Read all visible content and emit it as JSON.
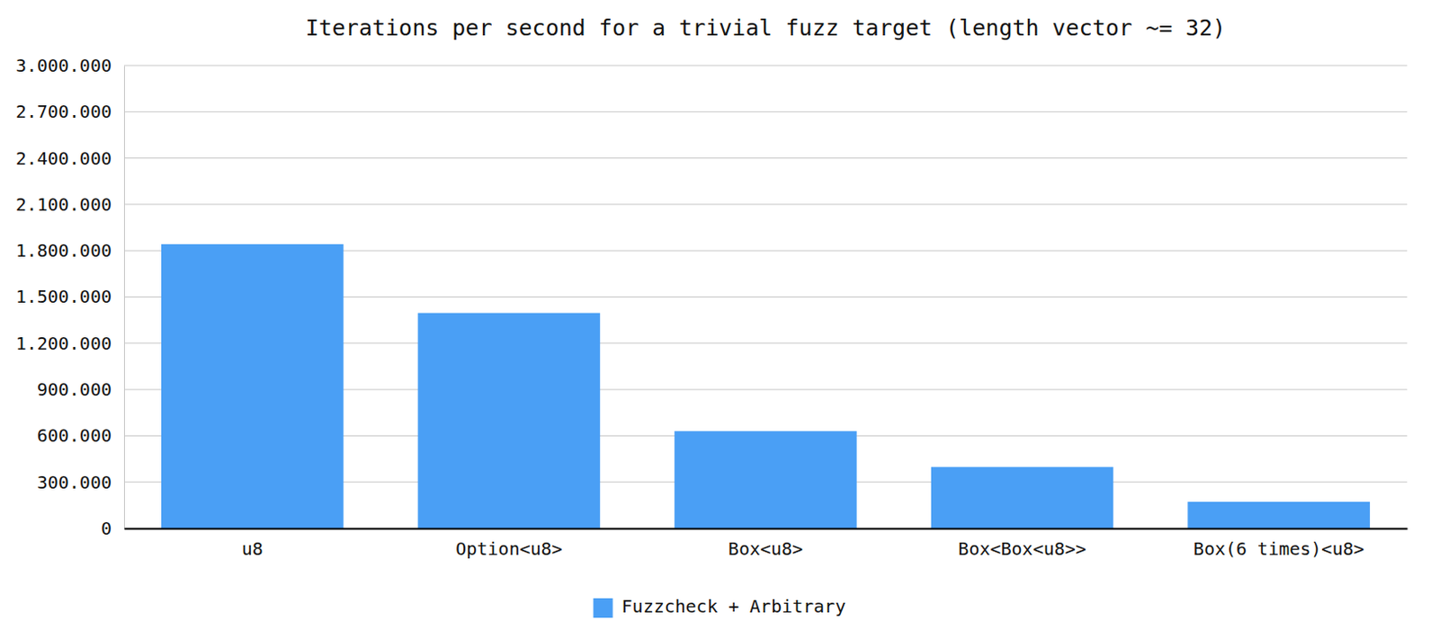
{
  "chart_data": {
    "type": "bar",
    "title": "Iterations per second for a trivial fuzz target (length vector ~= 32)",
    "categories": [
      "u8",
      "Option<u8>",
      "Box<u8>",
      "Box<Box<u8>>",
      "Box(6 times)<u8>"
    ],
    "series": [
      {
        "name": "Fuzzcheck + Arbitrary",
        "color": "#4a9ff5",
        "values": [
          1842000,
          1396000,
          630000,
          398000,
          172000
        ]
      }
    ],
    "ylim": [
      0,
      3000000
    ],
    "yticks": [
      {
        "value": 0,
        "label": "0"
      },
      {
        "value": 300000,
        "label": "300.000"
      },
      {
        "value": 600000,
        "label": "600.000"
      },
      {
        "value": 900000,
        "label": "900.000"
      },
      {
        "value": 1200000,
        "label": "1.200.000"
      },
      {
        "value": 1500000,
        "label": "1.500.000"
      },
      {
        "value": 1800000,
        "label": "1.800.000"
      },
      {
        "value": 2100000,
        "label": "2.100.000"
      },
      {
        "value": 2400000,
        "label": "2.400.000"
      },
      {
        "value": 2700000,
        "label": "2.700.000"
      },
      {
        "value": 3000000,
        "label": "3.000.000"
      }
    ],
    "grid": true,
    "legend": "bottom"
  }
}
